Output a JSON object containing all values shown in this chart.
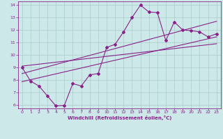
{
  "title": "",
  "xlabel": "Windchill (Refroidissement éolien,°C)",
  "ylabel": "",
  "xlim": [
    -0.5,
    23.5
  ],
  "ylim": [
    5.7,
    14.3
  ],
  "xticks": [
    0,
    1,
    2,
    3,
    4,
    5,
    6,
    7,
    8,
    9,
    10,
    11,
    12,
    13,
    14,
    15,
    16,
    17,
    18,
    19,
    20,
    21,
    22,
    23
  ],
  "yticks": [
    6,
    7,
    8,
    9,
    10,
    11,
    12,
    13,
    14
  ],
  "bg_color": "#cce8e8",
  "grid_color": "#aacccc",
  "line_color": "#882288",
  "main_x": [
    0,
    1,
    2,
    3,
    4,
    5,
    6,
    7,
    8,
    9,
    10,
    11,
    12,
    13,
    14,
    15,
    16,
    17,
    18,
    19,
    20,
    21,
    22,
    23
  ],
  "main_y": [
    9.0,
    7.9,
    7.5,
    6.7,
    5.9,
    5.95,
    7.7,
    7.5,
    8.4,
    8.5,
    10.6,
    10.85,
    11.85,
    13.0,
    14.0,
    13.45,
    13.4,
    11.15,
    12.65,
    12.0,
    11.95,
    11.85,
    11.45,
    11.7
  ],
  "line1_x": [
    0,
    23
  ],
  "line1_y": [
    7.85,
    11.45
  ],
  "line2_x": [
    0,
    23
  ],
  "line2_y": [
    8.5,
    12.7
  ],
  "line3_x": [
    0,
    23
  ],
  "line3_y": [
    9.1,
    10.9
  ]
}
